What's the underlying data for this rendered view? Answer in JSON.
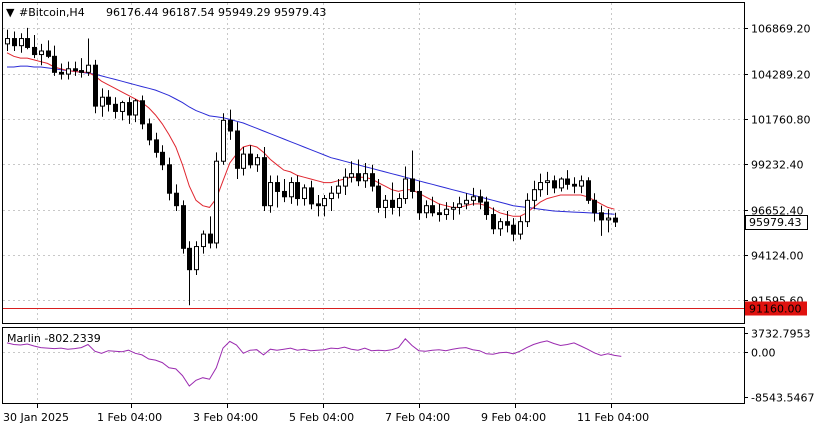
{
  "header": {
    "menu_glyph": "▼",
    "symbol": "#Bitcoin,H4",
    "ohlc": "96176.44 96187.54 95949.29 95979.43"
  },
  "price_axis": {
    "ticks": [
      "106869.20",
      "104289.20",
      "101760.80",
      "99232.40",
      "96652.40",
      "94124.00",
      "91595.60"
    ],
    "current_price": "95979.43",
    "hline_price": "91160.00"
  },
  "indicator": {
    "name": "Marlin -802.2339",
    "ticks": [
      "3732.7953",
      "0.00",
      "-8543.5467"
    ]
  },
  "time_axis": {
    "labels": [
      "30 Jan 2025",
      "1 Feb 04:00",
      "3 Feb 04:00",
      "5 Feb 04:00",
      "7 Feb 04:00",
      "9 Feb 04:00",
      "11 Feb 04:00"
    ]
  },
  "colors": {
    "background": "#ffffff",
    "grid": "#c8c8c8",
    "candle": "#000000",
    "fast_ma": "#e0262f",
    "slow_ma": "#2b2bd6",
    "oscillator": "#9b2bb0",
    "hline": "#d81e1e",
    "hline_label_bg": "#e0120f"
  },
  "chart_data": {
    "type": "candlestick",
    "ylim": [
      90300,
      108300
    ],
    "yticks": [
      106869.2,
      104289.2,
      101760.8,
      99232.4,
      96652.4,
      94124.0,
      91595.6
    ],
    "hline": 91160.0,
    "candles": [
      [
        106000,
        106800,
        105600,
        106300
      ],
      [
        106300,
        106700,
        105600,
        105900
      ],
      [
        105900,
        106600,
        105500,
        106300
      ],
      [
        106300,
        106900,
        105700,
        105800
      ],
      [
        105800,
        106500,
        105200,
        105400
      ],
      [
        105400,
        106000,
        104800,
        105600
      ],
      [
        105600,
        106200,
        105200,
        105300
      ],
      [
        105300,
        105900,
        104200,
        104400
      ],
      [
        104400,
        104900,
        104000,
        104300
      ],
      [
        104300,
        105000,
        104000,
        104600
      ],
      [
        104600,
        105000,
        104200,
        104500
      ],
      [
        104500,
        105200,
        104100,
        104400
      ],
      [
        104400,
        106300,
        104200,
        104800
      ],
      [
        104800,
        105100,
        102100,
        102500
      ],
      [
        102500,
        103500,
        101900,
        103000
      ],
      [
        103000,
        103400,
        102200,
        102600
      ],
      [
        102600,
        103000,
        101800,
        102200
      ],
      [
        102200,
        102800,
        101700,
        102700
      ],
      [
        102700,
        103000,
        101500,
        102000
      ],
      [
        102000,
        102900,
        101600,
        102800
      ],
      [
        102800,
        103100,
        101200,
        101500
      ],
      [
        101500,
        101800,
        100300,
        100600
      ],
      [
        100600,
        101000,
        99600,
        99900
      ],
      [
        99900,
        100300,
        98900,
        99200
      ],
      [
        99200,
        99600,
        97200,
        97600
      ],
      [
        97600,
        98100,
        96600,
        96900
      ],
      [
        96900,
        97200,
        94200,
        94500
      ],
      [
        94500,
        94900,
        91300,
        93300
      ],
      [
        93300,
        94900,
        93000,
        94600
      ],
      [
        94600,
        95500,
        94200,
        95300
      ],
      [
        95300,
        96300,
        94500,
        94800
      ],
      [
        94800,
        99900,
        94500,
        99400
      ],
      [
        99400,
        102100,
        99200,
        101700
      ],
      [
        101700,
        102300,
        100600,
        101100
      ],
      [
        101100,
        101600,
        98400,
        99000
      ],
      [
        99000,
        100200,
        98600,
        99800
      ],
      [
        99800,
        100300,
        99000,
        99200
      ],
      [
        99200,
        99800,
        98800,
        99600
      ],
      [
        99600,
        100200,
        96600,
        96900
      ],
      [
        96900,
        98600,
        96500,
        98200
      ],
      [
        98200,
        98600,
        96800,
        97700
      ],
      [
        97700,
        98400,
        97100,
        97400
      ],
      [
        97400,
        98500,
        97000,
        98200
      ],
      [
        98200,
        98600,
        96900,
        97300
      ],
      [
        97300,
        98100,
        96900,
        97900
      ],
      [
        97900,
        98300,
        96700,
        97000
      ],
      [
        97000,
        97500,
        96300,
        96900
      ],
      [
        96900,
        97500,
        96300,
        97300
      ],
      [
        97300,
        98000,
        96600,
        97600
      ],
      [
        97600,
        98400,
        97300,
        98000
      ],
      [
        98000,
        99000,
        97500,
        98500
      ],
      [
        98500,
        99400,
        98200,
        98700
      ],
      [
        98700,
        99500,
        98000,
        98300
      ],
      [
        98300,
        99300,
        97900,
        98700
      ],
      [
        98700,
        99200,
        97700,
        98000
      ],
      [
        98000,
        98400,
        96500,
        96800
      ],
      [
        96800,
        97500,
        96200,
        97200
      ],
      [
        97200,
        98200,
        96400,
        96800
      ],
      [
        96800,
        97600,
        96300,
        97300
      ],
      [
        97300,
        99100,
        97000,
        98400
      ],
      [
        98400,
        100000,
        97300,
        97700
      ],
      [
        97700,
        98300,
        96100,
        96500
      ],
      [
        96500,
        97200,
        96200,
        96900
      ],
      [
        96900,
        97400,
        96300,
        96500
      ],
      [
        96500,
        97000,
        96000,
        96400
      ],
      [
        96400,
        97100,
        96100,
        96700
      ],
      [
        96700,
        97100,
        96100,
        96800
      ],
      [
        96800,
        97400,
        96400,
        97000
      ],
      [
        97000,
        97600,
        96700,
        97200
      ],
      [
        97200,
        97900,
        96900,
        97400
      ],
      [
        97400,
        97800,
        96700,
        97100
      ],
      [
        97100,
        97400,
        96100,
        96400
      ],
      [
        96400,
        96800,
        95300,
        95600
      ],
      [
        95600,
        96200,
        95200,
        96000
      ],
      [
        96000,
        96600,
        95400,
        95800
      ],
      [
        95800,
        96200,
        94900,
        95300
      ],
      [
        95300,
        96300,
        95000,
        96000
      ],
      [
        96000,
        97600,
        95700,
        97200
      ],
      [
        97200,
        98300,
        96700,
        97800
      ],
      [
        97800,
        98700,
        97400,
        98200
      ],
      [
        98200,
        98800,
        97500,
        98300
      ],
      [
        98300,
        98600,
        97600,
        97900
      ],
      [
        97900,
        98500,
        97700,
        98400
      ],
      [
        98400,
        98900,
        97800,
        98100
      ],
      [
        98100,
        98500,
        97600,
        98000
      ],
      [
        98000,
        98600,
        97600,
        98300
      ],
      [
        98300,
        98500,
        97000,
        97200
      ],
      [
        97200,
        97600,
        96000,
        96500
      ],
      [
        96500,
        96900,
        95200,
        96100
      ],
      [
        96100,
        96700,
        95400,
        96200
      ],
      [
        96200,
        96500,
        95700,
        95979
      ]
    ],
    "fast_ma": [
      105500,
      105300,
      105200,
      105200,
      105100,
      105000,
      104900,
      104700,
      104600,
      104500,
      104450,
      104400,
      104400,
      104200,
      103900,
      103700,
      103500,
      103300,
      103100,
      102900,
      102700,
      102400,
      102000,
      101500,
      100900,
      100200,
      99200,
      98000,
      97200,
      96900,
      96800,
      97300,
      98300,
      99300,
      99800,
      100200,
      100300,
      100200,
      99900,
      99500,
      99200,
      98900,
      98800,
      98600,
      98500,
      98400,
      98300,
      98200,
      98200,
      98300,
      98400,
      98500,
      98500,
      98500,
      98400,
      98200,
      98000,
      97800,
      97700,
      97800,
      97800,
      97600,
      97400,
      97200,
      97000,
      96900,
      96800,
      96800,
      96900,
      97000,
      97000,
      96900,
      96700,
      96500,
      96400,
      96300,
      96300,
      96500,
      96800,
      97100,
      97300,
      97400,
      97500,
      97500,
      97500,
      97500,
      97400,
      97200,
      97000,
      96800,
      96700
    ],
    "slow_ma": [
      104700,
      104700,
      104750,
      104750,
      104700,
      104700,
      104650,
      104600,
      104550,
      104500,
      104450,
      104400,
      104350,
      104300,
      104200,
      104100,
      104000,
      103900,
      103800,
      103700,
      103600,
      103500,
      103400,
      103250,
      103100,
      102900,
      102700,
      102450,
      102250,
      102100,
      101950,
      101900,
      101850,
      101750,
      101650,
      101550,
      101400,
      101250,
      101100,
      100950,
      100800,
      100650,
      100500,
      100350,
      100200,
      100050,
      99900,
      99750,
      99600,
      99500,
      99400,
      99300,
      99200,
      99100,
      99000,
      98900,
      98800,
      98700,
      98600,
      98500,
      98400,
      98300,
      98200,
      98100,
      98000,
      97900,
      97800,
      97700,
      97600,
      97500,
      97400,
      97300,
      97200,
      97100,
      97000,
      96900,
      96850,
      96800,
      96750,
      96700,
      96650,
      96600,
      96580,
      96560,
      96540,
      96520,
      96500,
      96480,
      96460,
      96440,
      96420
    ],
    "oscillator": {
      "name": "Marlin",
      "ylim": [
        -9200,
        4100
      ],
      "yticks": [
        3732.7953,
        0.0,
        -8543.5467
      ],
      "values": [
        1800,
        1500,
        1400,
        1600,
        1200,
        900,
        800,
        700,
        800,
        600,
        700,
        900,
        1500,
        200,
        -200,
        300,
        200,
        100,
        400,
        -200,
        -500,
        -1300,
        -1500,
        -2000,
        -3000,
        -3200,
        -4500,
        -6500,
        -5400,
        -4900,
        -5200,
        -3000,
        800,
        2100,
        1400,
        -200,
        400,
        500,
        -500,
        600,
        400,
        600,
        800,
        400,
        600,
        300,
        400,
        500,
        800,
        700,
        1000,
        600,
        400,
        800,
        300,
        400,
        300,
        500,
        900,
        2600,
        1300,
        300,
        200,
        400,
        500,
        300,
        600,
        800,
        900,
        500,
        300,
        -300,
        -400,
        -100,
        0,
        -300,
        200,
        900,
        1500,
        1900,
        2200,
        1700,
        1300,
        1500,
        1800,
        1200,
        600,
        -100,
        -600,
        -300,
        -600,
        -802
      ]
    },
    "xlabels": [
      "30 Jan 2025",
      "1 Feb 04:00",
      "3 Feb 04:00",
      "5 Feb 04:00",
      "7 Feb 04:00",
      "9 Feb 04:00",
      "11 Feb 04:00"
    ]
  }
}
